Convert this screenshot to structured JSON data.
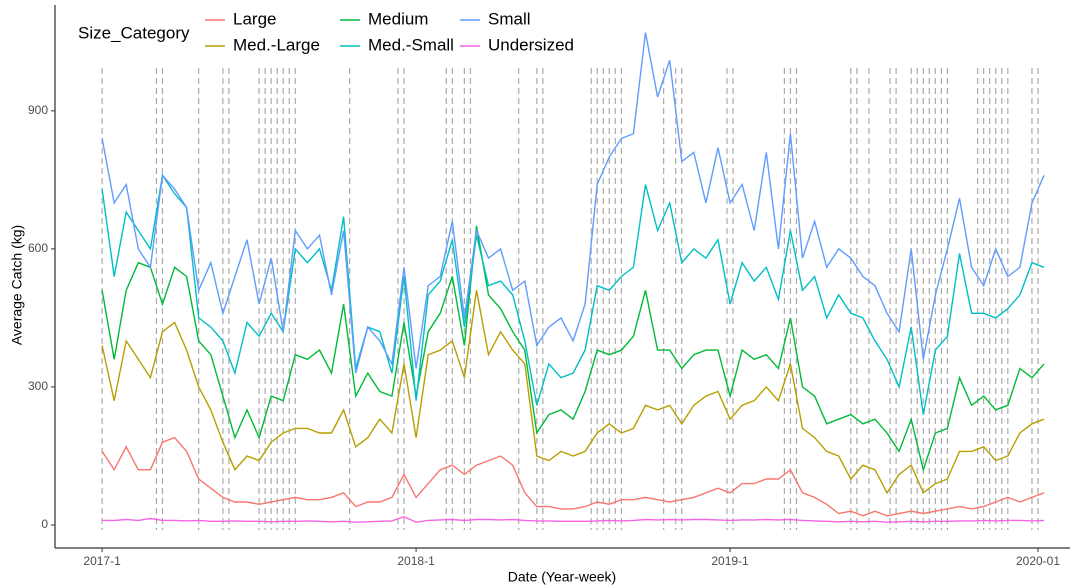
{
  "chart_data": {
    "type": "line",
    "xlabel": "Date (Year-week)",
    "ylabel": "Average Catch (kg)",
    "legend_title": "Size_Category",
    "xlim": [
      -7.8,
      160.3
    ],
    "ylim": [
      -50,
      1130
    ],
    "xticks": [
      {
        "value": 0,
        "label": "2017-1"
      },
      {
        "value": 52,
        "label": "2018-1"
      },
      {
        "value": 104,
        "label": "2019-1"
      },
      {
        "value": 155,
        "label": "2020-01"
      }
    ],
    "yticks": [
      0,
      300,
      600,
      900
    ],
    "vlines": [
      0,
      9,
      10,
      16,
      20,
      21,
      26,
      27,
      28,
      29,
      30,
      31,
      32,
      41,
      49,
      50,
      57,
      58,
      60,
      61,
      69,
      72,
      73,
      81,
      82,
      83,
      84,
      85,
      86,
      93,
      95,
      96,
      103.5,
      104.5,
      113,
      114,
      115,
      124,
      125,
      127,
      130.5,
      131.5,
      134,
      135,
      136,
      137,
      138,
      139,
      140,
      145,
      146,
      147,
      148,
      149,
      150,
      154,
      155
    ],
    "x": [
      0,
      2,
      4,
      6,
      8,
      10,
      12,
      14,
      16,
      18,
      20,
      22,
      24,
      26,
      28,
      30,
      32,
      34,
      36,
      38,
      40,
      42,
      44,
      46,
      48,
      50,
      52,
      54,
      56,
      58,
      60,
      62,
      64,
      66,
      68,
      70,
      72,
      74,
      76,
      78,
      80,
      82,
      84,
      86,
      88,
      90,
      92,
      94,
      96,
      98,
      100,
      102,
      104,
      106,
      108,
      110,
      112,
      114,
      116,
      118,
      120,
      122,
      124,
      126,
      128,
      130,
      132,
      134,
      136,
      138,
      140,
      142,
      144,
      146,
      148,
      150,
      152,
      154,
      156
    ],
    "series": [
      {
        "name": "Large",
        "color": "#F8766D",
        "values": [
          160,
          120,
          170,
          120,
          120,
          180,
          190,
          160,
          100,
          80,
          60,
          50,
          50,
          45,
          50,
          55,
          60,
          55,
          55,
          60,
          70,
          40,
          50,
          50,
          60,
          110,
          60,
          90,
          120,
          130,
          110,
          130,
          140,
          150,
          130,
          70,
          40,
          40,
          35,
          35,
          40,
          50,
          45,
          55,
          55,
          60,
          55,
          50,
          55,
          60,
          70,
          80,
          70,
          90,
          90,
          100,
          100,
          120,
          70,
          60,
          45,
          25,
          30,
          20,
          30,
          20,
          25,
          30,
          25,
          30,
          35,
          40,
          35,
          40,
          50,
          60,
          50,
          60,
          70
        ]
      },
      {
        "name": "Med.-Large",
        "color": "#B79F00",
        "values": [
          390,
          270,
          400,
          360,
          320,
          420,
          440,
          380,
          300,
          250,
          180,
          120,
          150,
          140,
          180,
          200,
          210,
          210,
          200,
          200,
          250,
          170,
          190,
          230,
          200,
          350,
          190,
          370,
          380,
          400,
          320,
          510,
          370,
          420,
          380,
          350,
          150,
          140,
          160,
          150,
          160,
          200,
          220,
          200,
          210,
          260,
          250,
          260,
          220,
          260,
          280,
          290,
          230,
          260,
          270,
          300,
          270,
          350,
          210,
          190,
          160,
          150,
          100,
          130,
          120,
          70,
          110,
          130,
          70,
          90,
          100,
          160,
          160,
          170,
          140,
          150,
          200,
          220,
          230
        ]
      },
      {
        "name": "Medium",
        "color": "#00BA38",
        "values": [
          510,
          360,
          510,
          570,
          560,
          480,
          560,
          540,
          400,
          370,
          280,
          190,
          250,
          190,
          280,
          270,
          370,
          360,
          380,
          330,
          480,
          280,
          330,
          290,
          280,
          440,
          280,
          420,
          460,
          540,
          390,
          650,
          500,
          470,
          420,
          380,
          200,
          240,
          250,
          230,
          290,
          380,
          370,
          380,
          410,
          510,
          380,
          380,
          340,
          370,
          380,
          380,
          280,
          380,
          360,
          370,
          340,
          450,
          300,
          280,
          220,
          230,
          240,
          220,
          230,
          200,
          160,
          230,
          120,
          200,
          210,
          320,
          260,
          280,
          250,
          260,
          340,
          320,
          350
        ]
      },
      {
        "name": "Med.-Small",
        "color": "#00BFC4",
        "values": [
          730,
          540,
          680,
          640,
          600,
          760,
          720,
          690,
          450,
          430,
          400,
          330,
          440,
          410,
          460,
          420,
          600,
          570,
          600,
          510,
          670,
          340,
          430,
          420,
          330,
          540,
          270,
          500,
          530,
          620,
          430,
          630,
          520,
          530,
          500,
          400,
          260,
          350,
          320,
          330,
          380,
          520,
          510,
          540,
          560,
          740,
          640,
          700,
          570,
          600,
          580,
          620,
          480,
          570,
          530,
          560,
          490,
          640,
          510,
          540,
          450,
          500,
          460,
          450,
          400,
          360,
          300,
          430,
          240,
          380,
          410,
          590,
          460,
          460,
          450,
          470,
          500,
          570,
          560
        ]
      },
      {
        "name": "Small",
        "color": "#619CFF",
        "values": [
          840,
          700,
          740,
          600,
          560,
          760,
          730,
          690,
          510,
          570,
          460,
          540,
          620,
          480,
          580,
          420,
          640,
          600,
          630,
          500,
          640,
          330,
          430,
          400,
          350,
          560,
          340,
          520,
          540,
          660,
          450,
          640,
          580,
          600,
          510,
          530,
          390,
          430,
          450,
          400,
          480,
          740,
          800,
          840,
          850,
          1070,
          930,
          1010,
          790,
          810,
          700,
          820,
          700,
          740,
          640,
          810,
          600,
          850,
          580,
          660,
          560,
          600,
          580,
          540,
          520,
          460,
          420,
          600,
          360,
          500,
          600,
          710,
          560,
          520,
          600,
          540,
          560,
          700,
          760
        ]
      },
      {
        "name": "Undersized",
        "color": "#F564E3",
        "values": [
          10,
          10,
          12,
          10,
          14,
          10,
          10,
          9,
          10,
          8,
          8,
          9,
          8,
          8,
          7,
          8,
          8,
          9,
          8,
          7,
          8,
          6,
          7,
          8,
          9,
          18,
          6,
          10,
          11,
          12,
          10,
          12,
          12,
          11,
          12,
          10,
          9,
          9,
          8,
          8,
          8,
          9,
          10,
          9,
          10,
          12,
          11,
          12,
          11,
          12,
          12,
          11,
          10,
          11,
          11,
          12,
          11,
          12,
          10,
          9,
          8,
          7,
          8,
          7,
          8,
          6,
          7,
          8,
          7,
          8,
          8,
          9,
          9,
          10,
          9,
          10,
          10,
          9,
          10
        ]
      }
    ]
  }
}
